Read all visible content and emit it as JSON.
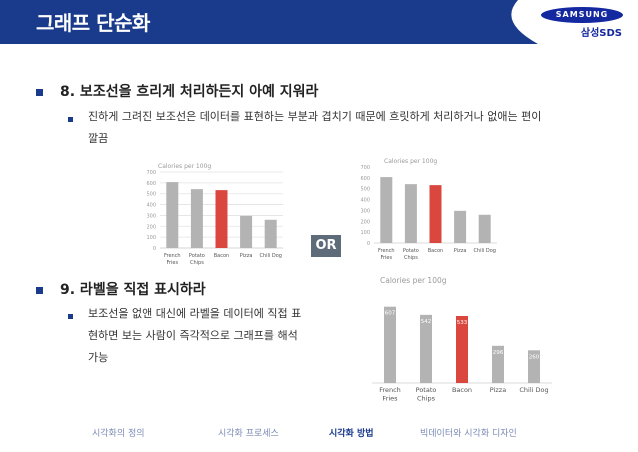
{
  "header": {
    "title": "그래프 단순화",
    "logo": "SAMSUNG",
    "logo_sub": "삼성SDS"
  },
  "sections": [
    {
      "heading": "8. 보조선을 흐리게 처리하든지 아예 지워라",
      "bullet_line1": "진하게 그려진 보조선은 데이터를 표현하는 부분과 겹치기 때문에 흐릿하게 처리하거나 없애는 편이",
      "bullet_line2": "깔끔"
    },
    {
      "heading": "9. 라벨을 직접 표시하라",
      "bullet_line1": "보조선을 없앤 대신에 라벨을 데이터에 직접 표",
      "bullet_line2": "현하면 보는 사람이 즉각적으로 그래프를 해석",
      "bullet_line3": "가능"
    }
  ],
  "or_label": "OR",
  "chart_data": [
    {
      "type": "bar",
      "title": "Calories per 100g",
      "categories": [
        [
          "French",
          "Fries"
        ],
        [
          "Potato",
          "Chips"
        ],
        [
          "Bacon"
        ],
        [
          "Pizza"
        ],
        [
          "Chili Dog"
        ]
      ],
      "values": [
        607,
        542,
        533,
        296,
        260
      ],
      "ylim": [
        0,
        700
      ],
      "yticks": [
        "0",
        "100",
        "200",
        "300",
        "400",
        "500",
        "600",
        "700"
      ],
      "grid": true,
      "highlight_index": 2
    },
    {
      "type": "bar",
      "title": "Calories per 100g",
      "categories": [
        [
          "French",
          "Fries"
        ],
        [
          "Potato",
          "Chips"
        ],
        [
          "Bacon"
        ],
        [
          "Pizza"
        ],
        [
          "Chili Dog"
        ]
      ],
      "values": [
        607,
        542,
        533,
        296,
        260
      ],
      "ylim": [
        0,
        700
      ],
      "yticks": [
        "0",
        "100",
        "200",
        "300",
        "400",
        "500",
        "600",
        "700"
      ],
      "grid": false,
      "highlight_index": 2
    },
    {
      "type": "bar",
      "title": "Calories per 100g",
      "categories": [
        [
          "French",
          "Fries"
        ],
        [
          "Potato",
          "Chips"
        ],
        [
          "Bacon"
        ],
        [
          "Pizza"
        ],
        [
          "Chili Dog"
        ]
      ],
      "values": [
        607,
        542,
        533,
        296,
        260
      ],
      "value_labels": [
        "607",
        "542",
        "533",
        "296",
        "260"
      ],
      "ylim": [
        0,
        700
      ],
      "grid": false,
      "highlight_index": 2
    }
  ],
  "colors": {
    "bar": "#b3b3b3",
    "highlight": "#d9473f",
    "grid": "#e3e3e3",
    "axis_text": "#9a9a9a",
    "header": "#1a3a8c"
  },
  "footer": {
    "nav": [
      "시각화의 정의",
      "시각화 프로세스",
      "시각화 방법",
      "빅데이터와 시각화 디자인"
    ],
    "active_index": 2
  }
}
